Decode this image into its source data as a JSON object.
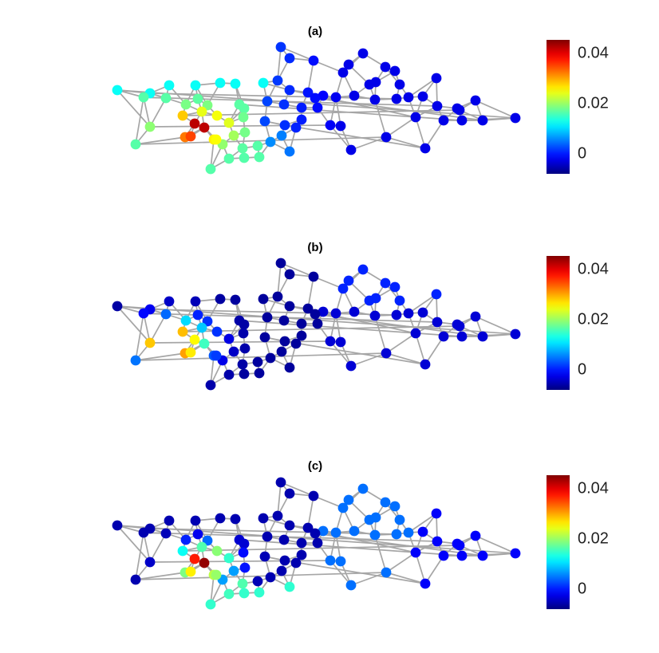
{
  "panels": [
    {
      "id": "a",
      "title": "(a)"
    },
    {
      "id": "b",
      "title": "(b)"
    },
    {
      "id": "c",
      "title": "(c)"
    }
  ],
  "colorbar": {
    "colormap": "jet",
    "ticks": [
      "0.04",
      "0.02",
      "0"
    ],
    "tick_values": [
      0.04,
      0.02,
      0
    ],
    "range": [
      -0.0085,
      0.045
    ]
  },
  "colors": {
    "edge": "#a6a6a6",
    "background": "#ffffff"
  }
}
